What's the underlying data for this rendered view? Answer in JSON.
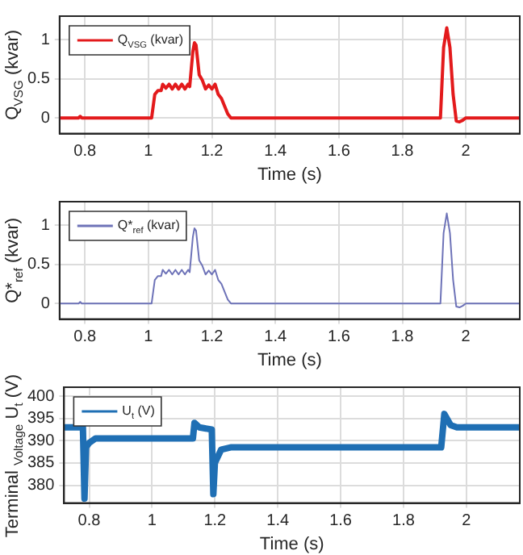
{
  "chart_data": [
    {
      "type": "line",
      "xlabel": "Time (s)",
      "ylabel": "Q$_{VSG}$ (kvar)",
      "legend": "top left",
      "grid": true,
      "xlim": [
        0.72,
        2.17
      ],
      "ylim": [
        -0.2,
        1.3
      ],
      "xticks": [
        0.8,
        1,
        1.2,
        1.4,
        1.6,
        1.8,
        2
      ],
      "yticks": [
        0,
        0.5,
        1
      ],
      "x": [
        0.72,
        0.78,
        0.785,
        0.79,
        1.01,
        1.02,
        1.03,
        1.04,
        1.045,
        1.055,
        1.065,
        1.075,
        1.085,
        1.095,
        1.105,
        1.115,
        1.125,
        1.13,
        1.14,
        1.145,
        1.15,
        1.16,
        1.17,
        1.18,
        1.19,
        1.2,
        1.21,
        1.22,
        1.23,
        1.25,
        1.26,
        1.92,
        1.93,
        1.94,
        1.95,
        1.96,
        1.97,
        1.98,
        1.99,
        2.0,
        2.17
      ],
      "series": [
        {
          "name": "Q$_{VSG}$ (kvar)",
          "color": "#e31a1c",
          "values": [
            0,
            0,
            0.02,
            0,
            0,
            0.3,
            0.35,
            0.35,
            0.43,
            0.38,
            0.43,
            0.37,
            0.43,
            0.37,
            0.43,
            0.37,
            0.43,
            0.4,
            0.85,
            0.96,
            0.93,
            0.55,
            0.48,
            0.37,
            0.42,
            0.37,
            0.43,
            0.3,
            0.25,
            0.05,
            0,
            0,
            0.9,
            1.15,
            0.9,
            0.3,
            -0.04,
            -0.05,
            -0.03,
            0,
            0
          ]
        }
      ]
    },
    {
      "type": "line",
      "xlabel": "Time (s)",
      "ylabel": "Q*$_{ref}$ (kvar)",
      "legend": "top left",
      "grid": true,
      "xlim": [
        0.72,
        2.17
      ],
      "ylim": [
        -0.2,
        1.3
      ],
      "xticks": [
        0.8,
        1,
        1.2,
        1.4,
        1.6,
        1.8,
        2
      ],
      "yticks": [
        0,
        0.5,
        1
      ],
      "x": [
        0.72,
        0.78,
        0.785,
        0.79,
        1.01,
        1.02,
        1.03,
        1.04,
        1.045,
        1.055,
        1.065,
        1.075,
        1.085,
        1.095,
        1.105,
        1.115,
        1.125,
        1.13,
        1.14,
        1.145,
        1.15,
        1.16,
        1.17,
        1.18,
        1.19,
        1.2,
        1.21,
        1.22,
        1.23,
        1.25,
        1.26,
        1.92,
        1.93,
        1.94,
        1.95,
        1.96,
        1.97,
        1.98,
        1.99,
        2.0,
        2.17
      ],
      "series": [
        {
          "name": "Q*$_{ref}$ (kvar)",
          "color": "#6e73b8",
          "values": [
            0,
            0,
            0.02,
            0,
            0,
            0.3,
            0.35,
            0.35,
            0.43,
            0.38,
            0.43,
            0.37,
            0.43,
            0.37,
            0.43,
            0.37,
            0.43,
            0.4,
            0.85,
            0.96,
            0.93,
            0.55,
            0.48,
            0.37,
            0.42,
            0.37,
            0.43,
            0.3,
            0.25,
            0.05,
            0,
            0,
            0.9,
            1.15,
            0.9,
            0.3,
            -0.04,
            -0.05,
            -0.03,
            0,
            0
          ]
        }
      ]
    },
    {
      "type": "line",
      "xlabel": "Time (s)",
      "ylabel": "Terminal $_{Voltage}$ U$_{t}$ (V)",
      "legend": "top left",
      "grid": true,
      "xlim": [
        0.72,
        2.17
      ],
      "ylim": [
        376,
        402
      ],
      "xticks": [
        0.8,
        1,
        1.2,
        1.4,
        1.6,
        1.8,
        2
      ],
      "yticks": [
        380,
        385,
        390,
        395,
        400
      ],
      "x": [
        0.72,
        0.78,
        0.785,
        0.79,
        0.8,
        0.82,
        1.13,
        1.135,
        1.15,
        1.19,
        1.195,
        1.2,
        1.22,
        1.25,
        1.92,
        1.93,
        1.95,
        1.97,
        2.17
      ],
      "series": [
        {
          "name": "U$_{t}$ (V)",
          "color": "#1f6fb4",
          "values": [
            393,
            393,
            377,
            388.5,
            389.5,
            390.5,
            390.5,
            394,
            393,
            392.5,
            378,
            385,
            388,
            388.5,
            388.5,
            396,
            393.5,
            393,
            393
          ]
        }
      ]
    }
  ]
}
